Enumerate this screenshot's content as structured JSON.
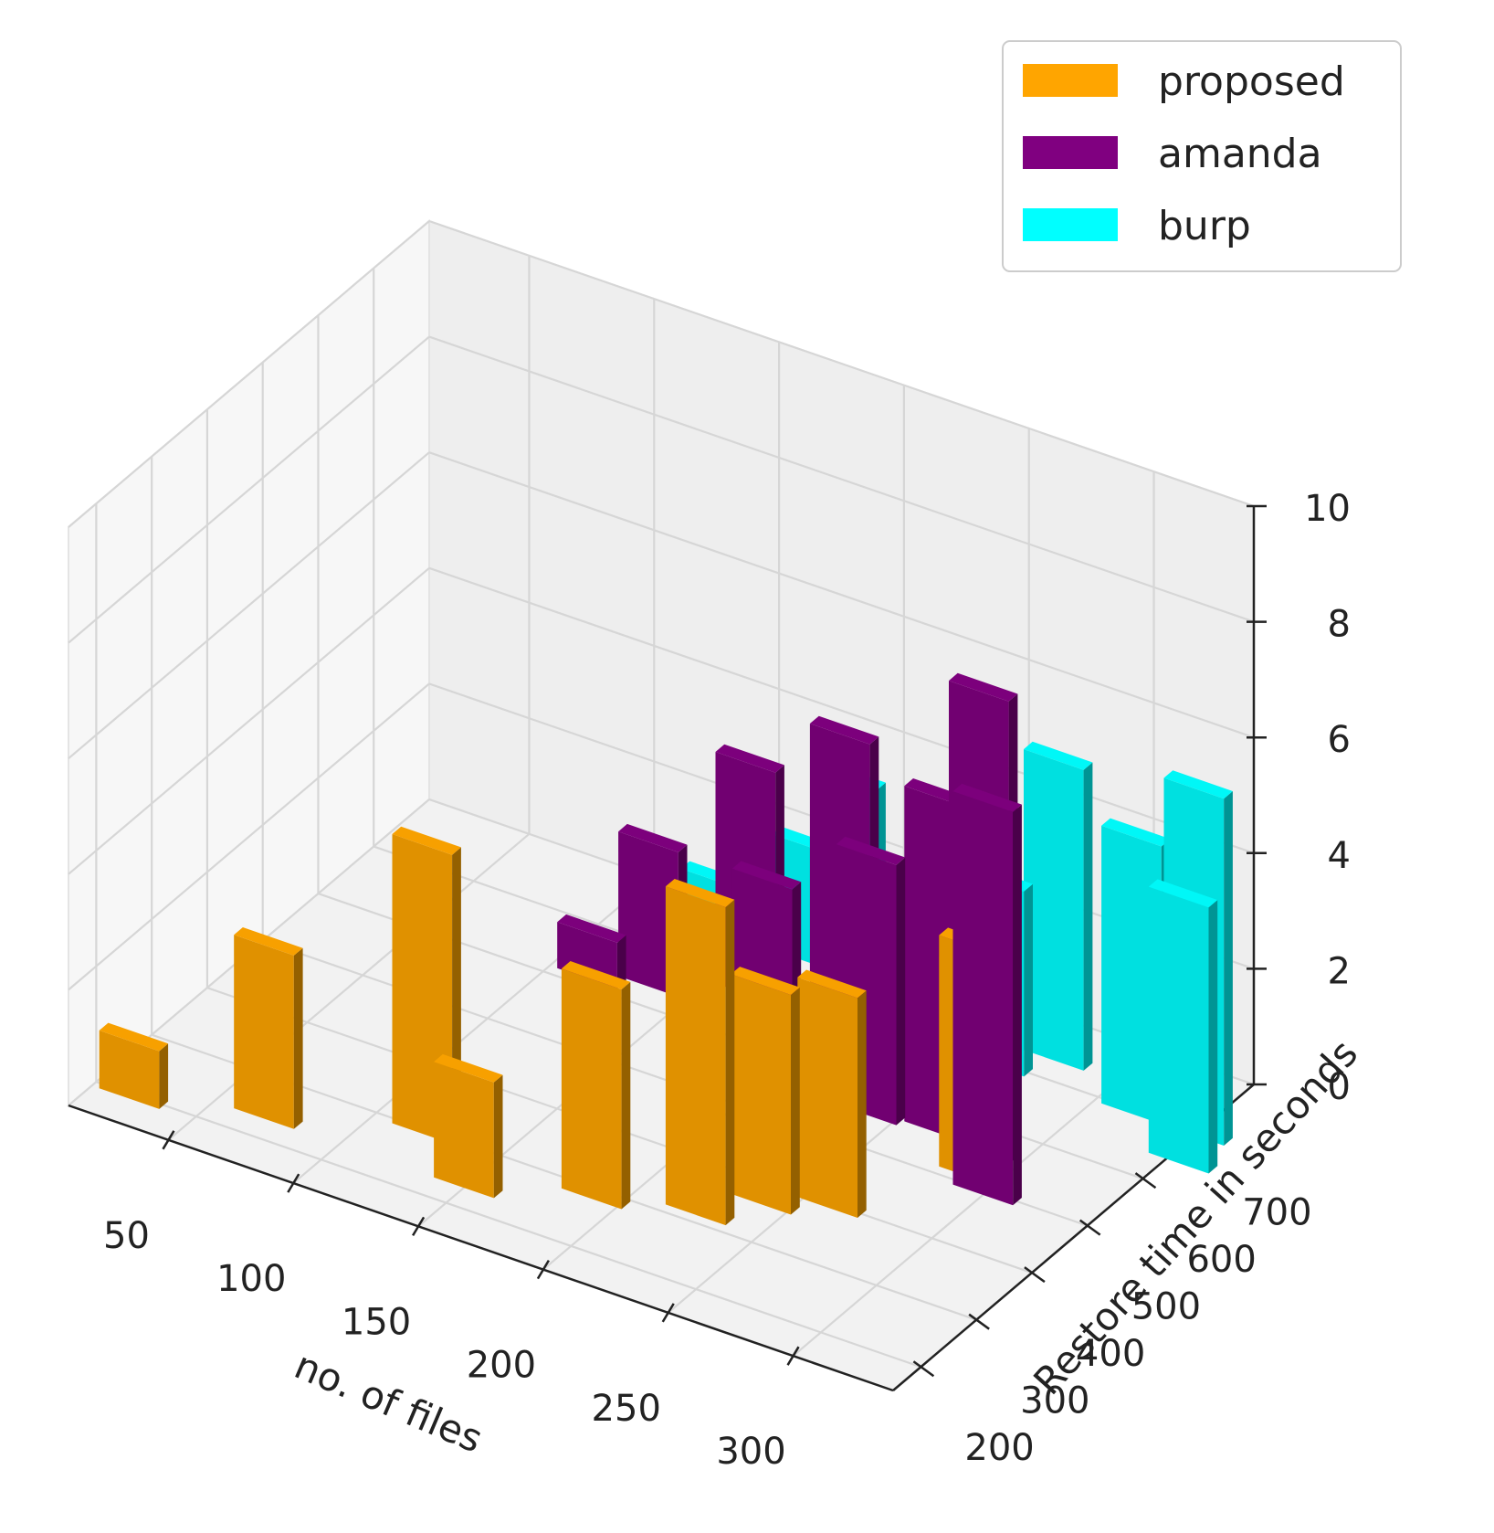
{
  "chart_data": {
    "type": "bar3d",
    "title": "",
    "xlabel": "no. of files",
    "ylabel": "Restore time in seconds",
    "zlabel": "",
    "x_ticks": [
      50,
      100,
      150,
      200,
      250,
      300
    ],
    "y_ticks": [
      200,
      300,
      400,
      500,
      600,
      700
    ],
    "z_ticks": [
      0,
      2,
      4,
      6,
      8,
      10
    ],
    "xlim": [
      10,
      340
    ],
    "ylim": [
      150,
      800
    ],
    "zlim": [
      0,
      10
    ],
    "grid": true,
    "legend_position": "top-right",
    "series": [
      {
        "name": "proposed",
        "color": "#FFA500",
        "points": [
          {
            "files": 25,
            "restore_time": 200,
            "value": 1.0
          },
          {
            "files": 70,
            "restore_time": 240,
            "value": 3.0
          },
          {
            "files": 120,
            "restore_time": 300,
            "value": 5.0
          },
          {
            "files": 150,
            "restore_time": 240,
            "value": 2.0
          },
          {
            "files": 190,
            "restore_time": 290,
            "value": 3.8
          },
          {
            "files": 225,
            "restore_time": 320,
            "value": 5.5
          },
          {
            "files": 240,
            "restore_time": 370,
            "value": 3.8
          },
          {
            "files": 260,
            "restore_time": 400,
            "value": 3.8
          },
          {
            "files": 290,
            "restore_time": 520,
            "value": 4.0
          }
        ]
      },
      {
        "name": "amanda",
        "color": "#800080",
        "points": [
          {
            "files": 115,
            "restore_time": 620,
            "value": 0.8
          },
          {
            "files": 135,
            "restore_time": 640,
            "value": 2.5
          },
          {
            "files": 165,
            "restore_time": 680,
            "value": 4.0
          },
          {
            "files": 205,
            "restore_time": 530,
            "value": 3.8
          },
          {
            "files": 225,
            "restore_time": 580,
            "value": 6.2
          },
          {
            "files": 240,
            "restore_time": 560,
            "value": 4.5
          },
          {
            "files": 265,
            "restore_time": 570,
            "value": 5.8
          },
          {
            "files": 285,
            "restore_time": 560,
            "value": 8.0
          },
          {
            "files": 300,
            "restore_time": 500,
            "value": 6.8
          }
        ]
      },
      {
        "name": "burp",
        "color": "#00FFFF",
        "points": [
          {
            "files": 140,
            "restore_time": 730,
            "value": 1.2
          },
          {
            "files": 170,
            "restore_time": 760,
            "value": 2.0
          },
          {
            "files": 190,
            "restore_time": 750,
            "value": 3.5
          },
          {
            "files": 240,
            "restore_time": 690,
            "value": 1.0
          },
          {
            "files": 260,
            "restore_time": 700,
            "value": 3.2
          },
          {
            "files": 275,
            "restore_time": 740,
            "value": 5.2
          },
          {
            "files": 315,
            "restore_time": 700,
            "value": 4.8
          },
          {
            "files": 340,
            "restore_time": 700,
            "value": 6.0
          },
          {
            "files": 345,
            "restore_time": 650,
            "value": 4.6
          }
        ]
      }
    ]
  }
}
